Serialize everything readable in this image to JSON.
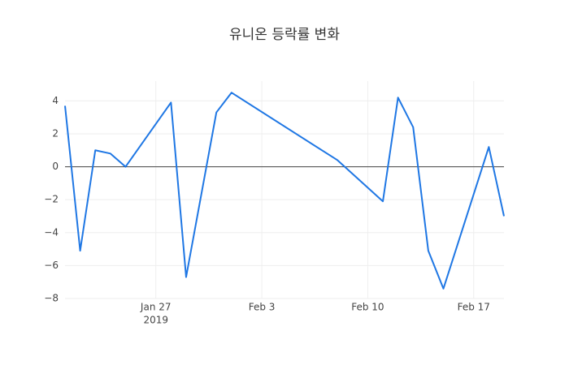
{
  "chart_data": {
    "type": "line",
    "title": "유니온 등락률 변화",
    "x": [
      "2019-01-21",
      "2019-01-22",
      "2019-01-23",
      "2019-01-24",
      "2019-01-25",
      "2019-01-28",
      "2019-01-29",
      "2019-01-31",
      "2019-02-01",
      "2019-02-08",
      "2019-02-11",
      "2019-02-12",
      "2019-02-13",
      "2019-02-14",
      "2019-02-15",
      "2019-02-18",
      "2019-02-19"
    ],
    "series": [
      {
        "color": "#1f77e4",
        "values": [
          3.7,
          -5.1,
          1.0,
          0.8,
          0.0,
          3.9,
          -6.7,
          3.3,
          4.5,
          0.4,
          -2.1,
          4.2,
          2.4,
          -5.1,
          -7.4,
          1.2,
          -3.0
        ]
      }
    ],
    "xlim": [
      "2019-01-21",
      "2019-02-19"
    ],
    "xticks": [
      {
        "value": "2019-01-27",
        "label": "Jan 27"
      },
      {
        "value": "2019-02-03",
        "label": "Feb 3"
      },
      {
        "value": "2019-02-10",
        "label": "Feb 10"
      },
      {
        "value": "2019-02-17",
        "label": "Feb 17"
      }
    ],
    "xtick_year": "2019",
    "ylim": [
      -8,
      5.2
    ],
    "yticks": [
      {
        "value": -8,
        "label": "−8"
      },
      {
        "value": -6,
        "label": "−6"
      },
      {
        "value": -4,
        "label": "−4"
      },
      {
        "value": -2,
        "label": "−2"
      },
      0,
      2,
      4
    ],
    "grid": true
  }
}
